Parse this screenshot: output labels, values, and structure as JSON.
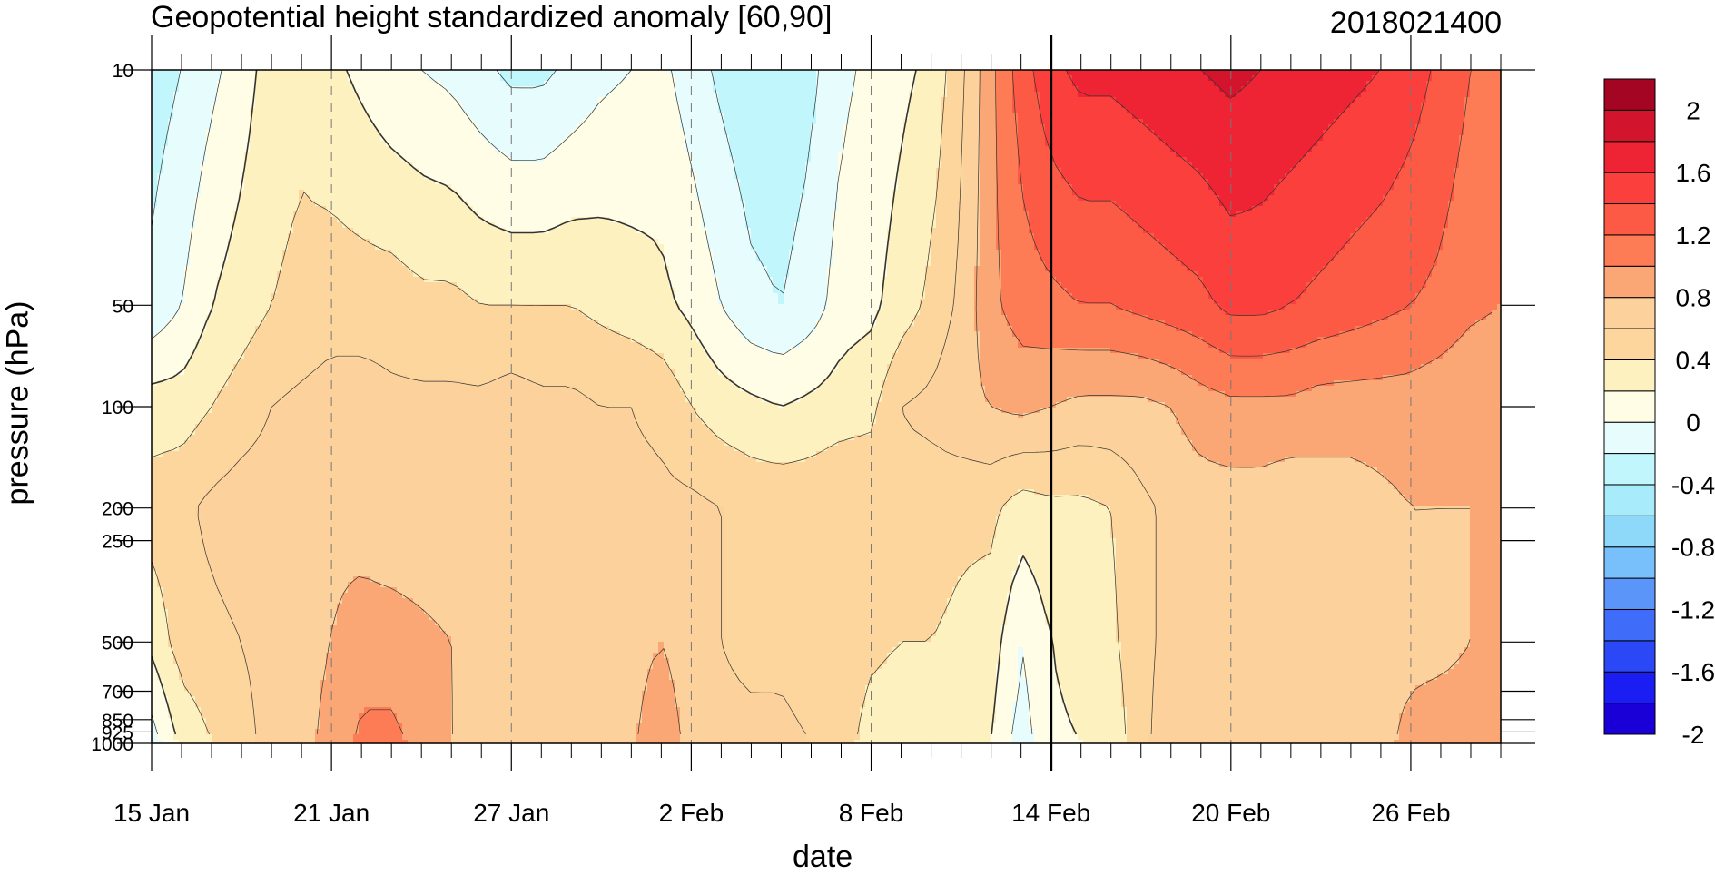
{
  "chart_data": {
    "type": "heatmap",
    "title": "Geopotential height standardized anomaly [60,90]",
    "date_tag": "2018021400",
    "xlabel": "date",
    "ylabel": "pressure (hPa)",
    "x_tick_labels": [
      "15 Jan",
      "21 Jan",
      "27 Jan",
      "2 Feb",
      "8 Feb",
      "14 Feb",
      "20 Feb",
      "26 Feb"
    ],
    "y_ticks": [
      {
        "value": 10,
        "label": "10"
      },
      {
        "value": 50,
        "label": "50"
      },
      {
        "value": 100,
        "label": "100"
      },
      {
        "value": 200,
        "label": "200"
      },
      {
        "value": 250,
        "label": "250"
      },
      {
        "value": 500,
        "label": "500"
      },
      {
        "value": 700,
        "label": "700"
      },
      {
        "value": 850,
        "label": "850"
      },
      {
        "value": 925,
        "label": "925"
      },
      {
        "value": 1000,
        "label": "1000"
      }
    ],
    "y_scale": "log",
    "ylim": [
      1000,
      10
    ],
    "levels": [
      -2.2,
      -2.0,
      -1.8,
      -1.6,
      -1.4,
      -1.2,
      -1.0,
      -0.8,
      -0.6,
      -0.4,
      -0.2,
      0.0,
      0.2,
      0.4,
      0.6,
      0.8,
      1.0,
      1.2,
      1.4,
      1.6,
      1.8,
      2.0,
      2.2
    ],
    "colors": [
      "#1a00d6",
      "#1a1ef2",
      "#2a48f5",
      "#3f6cf8",
      "#5b95fa",
      "#78c0fb",
      "#8ed8fa",
      "#a8ecfb",
      "#c0f6fc",
      "#e6fcfd",
      "#fffde6",
      "#fdf1bf",
      "#fcd69c",
      "#fcd19c",
      "#fba775",
      "#fd7c55",
      "#fd5a45",
      "#fb3f3d",
      "#ee2435",
      "#d3142d",
      "#a30523"
    ],
    "colorbar_labels": [
      "2",
      "1.6",
      "1.2",
      "0.8",
      "0.4",
      "0",
      "-0.4",
      "-0.8",
      "-1.2",
      "-1.6",
      "-2"
    ],
    "current_date_marker": "14 Feb",
    "days": [
      "15 Jan",
      "16 Jan",
      "17 Jan",
      "18 Jan",
      "19 Jan",
      "20 Jan",
      "21 Jan",
      "22 Jan",
      "23 Jan",
      "24 Jan",
      "25 Jan",
      "26 Jan",
      "27 Jan",
      "28 Jan",
      "29 Jan",
      "30 Jan",
      "31 Jan",
      "1 Feb",
      "2 Feb",
      "3 Feb",
      "4 Feb",
      "5 Feb",
      "6 Feb",
      "7 Feb",
      "8 Feb",
      "9 Feb",
      "10 Feb",
      "11 Feb",
      "12 Feb",
      "13 Feb",
      "14 Feb",
      "15 Feb",
      "16 Feb",
      "17 Feb",
      "18 Feb",
      "19 Feb",
      "20 Feb",
      "21 Feb",
      "22 Feb",
      "23 Feb",
      "24 Feb",
      "25 Feb",
      "26 Feb",
      "27 Feb",
      "28 Feb",
      "1 Mar"
    ],
    "z_1000_to_10_hPa": [
      [
        -0.3,
        0.05,
        0.3,
        0.1,
        -0.35,
        -0.5
      ],
      [
        0.05,
        0.3,
        0.35,
        0.1,
        -0.2,
        -0.4
      ],
      [
        0.2,
        0.35,
        0.45,
        0.2,
        0.0,
        -0.25
      ],
      [
        0.3,
        0.4,
        0.5,
        0.3,
        0.1,
        -0.1
      ],
      [
        0.5,
        0.5,
        0.5,
        0.4,
        0.2,
        0.1
      ],
      [
        0.55,
        0.55,
        0.55,
        0.45,
        0.25,
        0.15
      ],
      [
        0.65,
        0.6,
        0.55,
        0.5,
        0.3,
        0.05
      ],
      [
        0.85,
        0.7,
        0.5,
        0.5,
        0.3,
        -0.05
      ],
      [
        0.85,
        0.7,
        0.45,
        0.45,
        0.3,
        -0.15
      ],
      [
        0.75,
        0.65,
        0.45,
        0.45,
        0.25,
        -0.2
      ],
      [
        0.6,
        0.6,
        0.45,
        0.45,
        0.25,
        -0.25
      ],
      [
        0.5,
        0.55,
        0.45,
        0.45,
        0.2,
        -0.35
      ],
      [
        0.45,
        0.5,
        0.5,
        0.5,
        0.2,
        -0.45
      ],
      [
        0.5,
        0.45,
        0.45,
        0.45,
        0.2,
        -0.45
      ],
      [
        0.45,
        0.45,
        0.45,
        0.45,
        0.2,
        -0.35
      ],
      [
        0.45,
        0.4,
        0.45,
        0.4,
        0.15,
        -0.25
      ],
      [
        0.55,
        0.5,
        0.45,
        0.4,
        0.1,
        -0.2
      ],
      [
        0.8,
        0.6,
        0.45,
        0.35,
        0.05,
        -0.15
      ],
      [
        0.5,
        0.45,
        0.45,
        0.2,
        -0.05,
        -0.3
      ],
      [
        0.45,
        0.4,
        0.4,
        0.1,
        -0.2,
        -0.45
      ],
      [
        0.45,
        0.35,
        0.35,
        0.05,
        -0.35,
        -0.55
      ],
      [
        0.45,
        0.35,
        0.35,
        0.0,
        -0.4,
        -0.55
      ],
      [
        0.4,
        0.3,
        0.35,
        0.05,
        -0.3,
        -0.45
      ],
      [
        0.3,
        0.35,
        0.4,
        0.1,
        -0.1,
        -0.25
      ],
      [
        0.1,
        0.25,
        0.35,
        0.15,
        -0.05,
        -0.15
      ],
      [
        0.05,
        0.2,
        0.35,
        0.4,
        0.1,
        -0.05
      ],
      [
        0.1,
        0.2,
        0.3,
        0.45,
        0.25,
        0.05
      ],
      [
        0.1,
        0.15,
        0.25,
        0.55,
        0.45,
        0.35
      ],
      [
        0.0,
        0.1,
        0.25,
        0.6,
        0.75,
        0.75
      ],
      [
        -0.3,
        -0.2,
        0.1,
        0.65,
        0.9,
        1.1
      ],
      [
        -0.05,
        0.0,
        0.15,
        0.6,
        0.95,
        1.35
      ],
      [
        0.0,
        0.1,
        0.15,
        0.55,
        1.0,
        1.45
      ],
      [
        0.05,
        0.15,
        0.2,
        0.55,
        1.0,
        1.45
      ],
      [
        0.35,
        0.35,
        0.35,
        0.55,
        1.05,
        1.5
      ],
      [
        0.5,
        0.45,
        0.45,
        0.6,
        1.1,
        1.55
      ],
      [
        0.5,
        0.5,
        0.5,
        0.7,
        1.15,
        1.6
      ],
      [
        0.5,
        0.5,
        0.5,
        0.75,
        1.25,
        1.65
      ],
      [
        0.5,
        0.45,
        0.5,
        0.75,
        1.25,
        1.6
      ],
      [
        0.5,
        0.4,
        0.45,
        0.75,
        1.2,
        1.55
      ],
      [
        0.5,
        0.45,
        0.5,
        0.7,
        1.15,
        1.5
      ],
      [
        0.5,
        0.5,
        0.5,
        0.7,
        1.1,
        1.45
      ],
      [
        0.55,
        0.55,
        0.55,
        0.7,
        1.05,
        1.4
      ],
      [
        0.65,
        0.55,
        0.6,
        0.7,
        1.0,
        1.3
      ],
      [
        0.7,
        0.55,
        0.6,
        0.65,
        0.95,
        1.15
      ],
      [
        0.7,
        0.6,
        0.6,
        0.6,
        0.85,
        1.0
      ],
      [
        0.75,
        0.6,
        0.6,
        0.6,
        0.8,
        0.9
      ]
    ],
    "z_pressure_levels": [
      1000,
      500,
      200,
      100,
      50,
      10
    ]
  }
}
